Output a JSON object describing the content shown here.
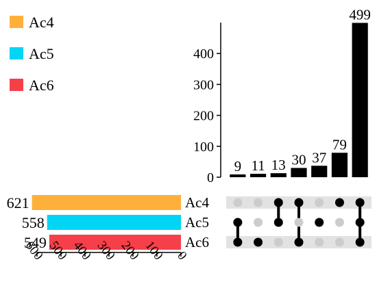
{
  "colors": {
    "Ac4": "#FFB03B",
    "Ac5": "#00D5F5",
    "Ac6": "#F5404A",
    "bar": "#000000",
    "dot_inactive": "#CCCCCC",
    "row_shade": "#E2E2E2"
  },
  "chart_data": {
    "type": "upset",
    "legend": {
      "position": "top-left",
      "items": [
        "Ac4",
        "Ac5",
        "Ac6"
      ]
    },
    "sets": [
      {
        "name": "Ac4",
        "size": 621
      },
      {
        "name": "Ac5",
        "size": 558
      },
      {
        "name": "Ac6",
        "size": 549
      }
    ],
    "set_size_axis": {
      "ticks": [
        "600",
        "500",
        "400",
        "300",
        "200",
        "100",
        "0"
      ],
      "max": 600
    },
    "intersections": [
      {
        "sets": [
          "Ac5",
          "Ac6"
        ],
        "value": 9,
        "label": "9"
      },
      {
        "sets": [
          "Ac6"
        ],
        "value": 11,
        "label": "11"
      },
      {
        "sets": [
          "Ac4",
          "Ac5"
        ],
        "value": 13,
        "label": "13"
      },
      {
        "sets": [
          "Ac4",
          "Ac6"
        ],
        "value": 30,
        "label": "30"
      },
      {
        "sets": [
          "Ac5"
        ],
        "value": 37,
        "label": "37"
      },
      {
        "sets": [
          "Ac4"
        ],
        "value": 79,
        "label": "79"
      },
      {
        "sets": [
          "Ac4",
          "Ac5",
          "Ac6"
        ],
        "value": 499,
        "label": "499"
      }
    ],
    "intersection_axis": {
      "ticks": [
        "0",
        "100",
        "200",
        "300",
        "400"
      ],
      "ylim": [
        0,
        500
      ]
    }
  }
}
